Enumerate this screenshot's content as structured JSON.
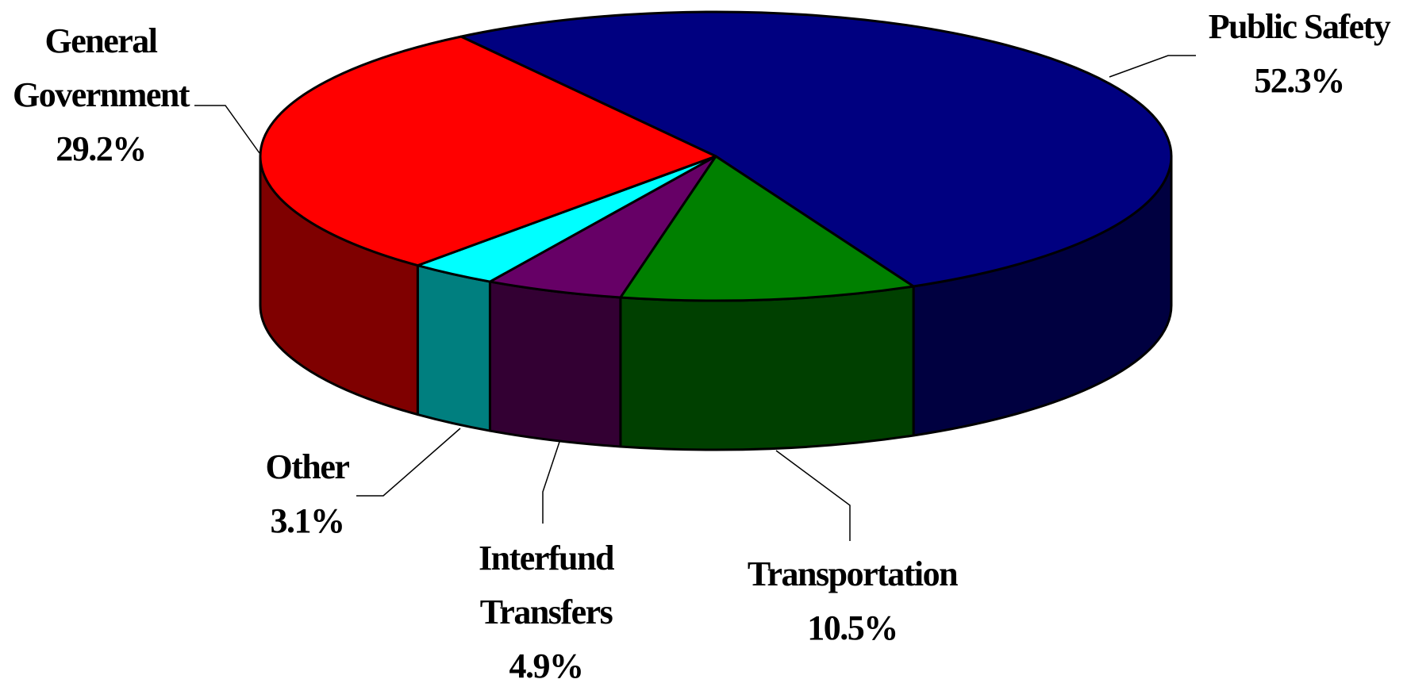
{
  "chart_data": {
    "type": "pie",
    "categories": [
      "Public Safety",
      "Transportation",
      "Interfund Transfers",
      "Other",
      "General Government"
    ],
    "values": [
      52.3,
      10.5,
      4.9,
      3.1,
      29.2
    ],
    "value_labels": [
      "52.3%",
      "10.5%",
      "4.9%",
      "3.1%",
      "29.2%"
    ],
    "colors": [
      "#000080",
      "#008000",
      "#660066",
      "#00ffff",
      "#ff0000"
    ]
  }
}
